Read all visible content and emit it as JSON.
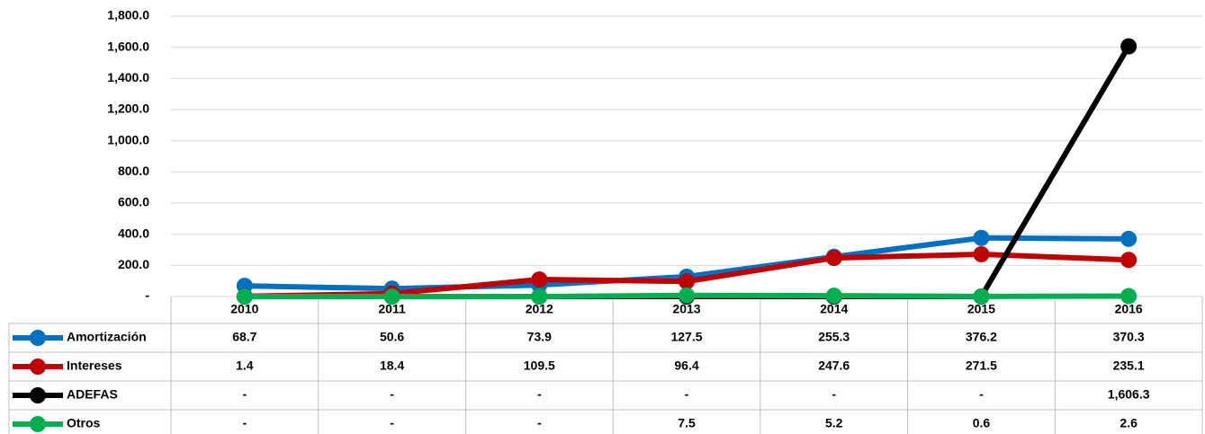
{
  "chart_data": {
    "type": "line",
    "categories": [
      "2010",
      "2011",
      "2012",
      "2013",
      "2014",
      "2015",
      "2016"
    ],
    "series": [
      {
        "name": "Amortización",
        "color": "#0070c0",
        "values": [
          68.7,
          50.6,
          73.9,
          127.5,
          255.3,
          376.2,
          370.3
        ],
        "value_labels": [
          "68.7",
          "50.6",
          "73.9",
          "127.5",
          "255.3",
          "376.2",
          "370.3"
        ]
      },
      {
        "name": "Intereses",
        "color": "#c00000",
        "values": [
          1.4,
          18.4,
          109.5,
          96.4,
          247.6,
          271.5,
          235.1
        ],
        "value_labels": [
          "1.4",
          "18.4",
          "109.5",
          "96.4",
          "247.6",
          "271.5",
          "235.1"
        ]
      },
      {
        "name": "ADEFAS",
        "color": "#000000",
        "values": [
          0,
          0,
          0,
          0,
          0,
          0,
          1606.3
        ],
        "value_labels": [
          "-",
          "-",
          "-",
          "-",
          "-",
          "-",
          "1,606.3"
        ]
      },
      {
        "name": "Otros",
        "color": "#00b050",
        "values": [
          0,
          0,
          0,
          7.5,
          5.2,
          0.6,
          2.6
        ],
        "value_labels": [
          "-",
          "-",
          "-",
          "7.5",
          "5.2",
          "0.6",
          "2.6"
        ]
      }
    ],
    "ylim": [
      0,
      1800
    ],
    "yticks": [
      {
        "value": 0,
        "label": "-"
      },
      {
        "value": 200,
        "label": "200.0"
      },
      {
        "value": 400,
        "label": "400.0"
      },
      {
        "value": 600,
        "label": "600.0"
      },
      {
        "value": 800,
        "label": "800.0"
      },
      {
        "value": 1000,
        "label": "1,000.0"
      },
      {
        "value": 1200,
        "label": "1,200.0"
      },
      {
        "value": 1400,
        "label": "1,400.0"
      },
      {
        "value": 1600,
        "label": "1,600.0"
      },
      {
        "value": 1800,
        "label": "1,800.0"
      }
    ],
    "grid": true
  }
}
